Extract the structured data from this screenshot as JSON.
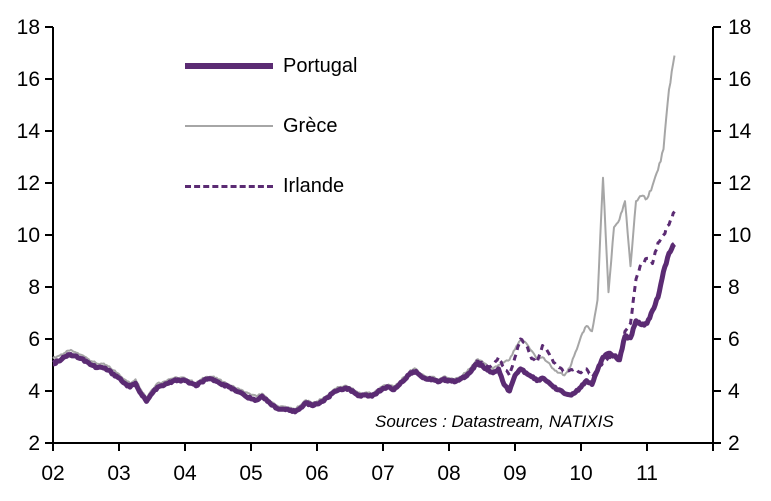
{
  "colors": {
    "portugal_purple": "#5B2B73",
    "greece_gray": "#A6A6A6",
    "axis_black": "#000000",
    "background": "#FFFFFF"
  },
  "legend": {
    "items": [
      {
        "label": "Portugal",
        "style": "solid-thick",
        "color": "#5B2B73"
      },
      {
        "label": "Grèce",
        "style": "solid-thin",
        "color": "#A6A6A6"
      },
      {
        "label": "Irlande",
        "style": "dashed",
        "color": "#5B2B73"
      }
    ]
  },
  "source_note": "Sources : Datastream, NATIXIS",
  "chart_data": {
    "type": "line",
    "title": "",
    "xlabel": "",
    "ylabel": "",
    "grid": false,
    "legend_position": "upper-left-inside",
    "y_axis": {
      "min": 2,
      "max": 18,
      "step": 2,
      "tick_labels": [
        "2",
        "4",
        "6",
        "8",
        "10",
        "12",
        "14",
        "16",
        "18"
      ],
      "sides": "both"
    },
    "x_axis": {
      "min_year": 2002,
      "max_year": 2012,
      "tick_years": [
        2002,
        2003,
        2004,
        2005,
        2006,
        2007,
        2008,
        2009,
        2010,
        2011,
        2012
      ],
      "tick_labels": [
        "02",
        "03",
        "04",
        "05",
        "06",
        "07",
        "08",
        "09",
        "10",
        "11",
        ""
      ]
    },
    "sampling": {
      "x_start_year": 2002.0,
      "x_step_years": 0.083333,
      "frequency": "monthly",
      "end": "2011-06"
    },
    "series": [
      {
        "name": "Grèce",
        "color": "#A6A6A6",
        "style": "solid-thin",
        "values": [
          5.25,
          5.35,
          5.45,
          5.55,
          5.5,
          5.4,
          5.3,
          5.15,
          5.05,
          5.05,
          4.95,
          4.8,
          4.65,
          4.45,
          4.3,
          4.45,
          4.05,
          3.75,
          4.05,
          4.3,
          4.35,
          4.45,
          4.5,
          4.5,
          4.5,
          4.4,
          4.3,
          4.45,
          4.55,
          4.55,
          4.45,
          4.35,
          4.25,
          4.15,
          4.05,
          3.95,
          3.85,
          3.8,
          3.9,
          3.7,
          3.55,
          3.4,
          3.4,
          3.35,
          3.3,
          3.45,
          3.65,
          3.55,
          3.6,
          3.7,
          3.85,
          4.05,
          4.15,
          4.2,
          4.15,
          4.0,
          3.9,
          3.95,
          3.9,
          4.05,
          4.2,
          4.25,
          4.15,
          4.35,
          4.55,
          4.8,
          4.85,
          4.65,
          4.55,
          4.55,
          4.45,
          4.55,
          4.5,
          4.45,
          4.55,
          4.7,
          4.9,
          5.2,
          5.15,
          4.95,
          4.85,
          5.0,
          5.1,
          5.2,
          5.6,
          5.95,
          5.85,
          5.55,
          5.25,
          5.3,
          5.1,
          4.85,
          4.7,
          4.6,
          4.9,
          5.5,
          6.1,
          6.5,
          6.3,
          7.5,
          12.2,
          7.8,
          10.3,
          10.6,
          11.3,
          8.8,
          11.3,
          11.5,
          11.4,
          11.9,
          12.5,
          13.3,
          15.6,
          16.9
        ]
      },
      {
        "name": "Portugal",
        "color": "#5B2B73",
        "style": "solid-thick",
        "values": [
          5.05,
          5.15,
          5.3,
          5.4,
          5.35,
          5.25,
          5.15,
          5.0,
          4.9,
          4.9,
          4.8,
          4.65,
          4.5,
          4.3,
          4.15,
          4.3,
          3.9,
          3.6,
          3.9,
          4.15,
          4.2,
          4.3,
          4.4,
          4.4,
          4.4,
          4.3,
          4.2,
          4.35,
          4.45,
          4.45,
          4.35,
          4.25,
          4.15,
          4.05,
          3.95,
          3.8,
          3.7,
          3.65,
          3.8,
          3.6,
          3.45,
          3.3,
          3.3,
          3.25,
          3.2,
          3.35,
          3.55,
          3.45,
          3.5,
          3.6,
          3.75,
          3.95,
          4.05,
          4.1,
          4.05,
          3.9,
          3.8,
          3.85,
          3.8,
          3.95,
          4.1,
          4.15,
          4.05,
          4.25,
          4.45,
          4.7,
          4.75,
          4.55,
          4.45,
          4.45,
          4.35,
          4.45,
          4.4,
          4.35,
          4.45,
          4.55,
          4.75,
          5.05,
          5.0,
          4.8,
          4.7,
          4.85,
          4.25,
          4.0,
          4.6,
          4.85,
          4.7,
          4.55,
          4.4,
          4.5,
          4.35,
          4.15,
          4.05,
          3.9,
          3.85,
          3.95,
          4.15,
          4.4,
          4.25,
          4.8,
          5.3,
          5.45,
          5.35,
          5.2,
          6.1,
          6.05,
          6.7,
          6.55,
          6.6,
          7.1,
          7.6,
          8.6,
          9.3,
          9.65
        ]
      },
      {
        "name": "Irlande",
        "color": "#5B2B73",
        "style": "dashed",
        "values": [
          5.1,
          5.2,
          5.32,
          5.42,
          5.38,
          5.28,
          5.18,
          5.02,
          4.92,
          4.92,
          4.82,
          4.68,
          4.52,
          4.32,
          4.18,
          4.32,
          3.92,
          3.62,
          3.92,
          4.17,
          4.22,
          4.32,
          4.42,
          4.42,
          4.42,
          4.32,
          4.22,
          4.37,
          4.47,
          4.47,
          4.37,
          4.27,
          4.17,
          4.07,
          3.97,
          3.82,
          3.72,
          3.67,
          3.82,
          3.62,
          3.47,
          3.32,
          3.32,
          3.27,
          3.22,
          3.37,
          3.57,
          3.47,
          3.52,
          3.62,
          3.77,
          3.97,
          4.07,
          4.12,
          4.07,
          3.92,
          3.82,
          3.87,
          3.82,
          3.97,
          4.12,
          4.17,
          4.07,
          4.27,
          4.47,
          4.72,
          4.77,
          4.57,
          4.47,
          4.47,
          4.37,
          4.5,
          4.45,
          4.4,
          4.5,
          4.6,
          4.85,
          5.15,
          5.1,
          4.95,
          5.0,
          5.3,
          4.9,
          4.6,
          5.3,
          6.0,
          5.8,
          5.25,
          5.1,
          5.75,
          5.5,
          5.1,
          4.9,
          4.75,
          4.8,
          4.85,
          4.7,
          4.85,
          4.55,
          4.85,
          5.1,
          5.3,
          5.35,
          5.2,
          6.3,
          6.6,
          8.3,
          8.9,
          9.1,
          8.9,
          9.7,
          10.0,
          10.4,
          10.9
        ]
      }
    ],
    "source_note": "Sources : Datastream, NATIXIS"
  }
}
